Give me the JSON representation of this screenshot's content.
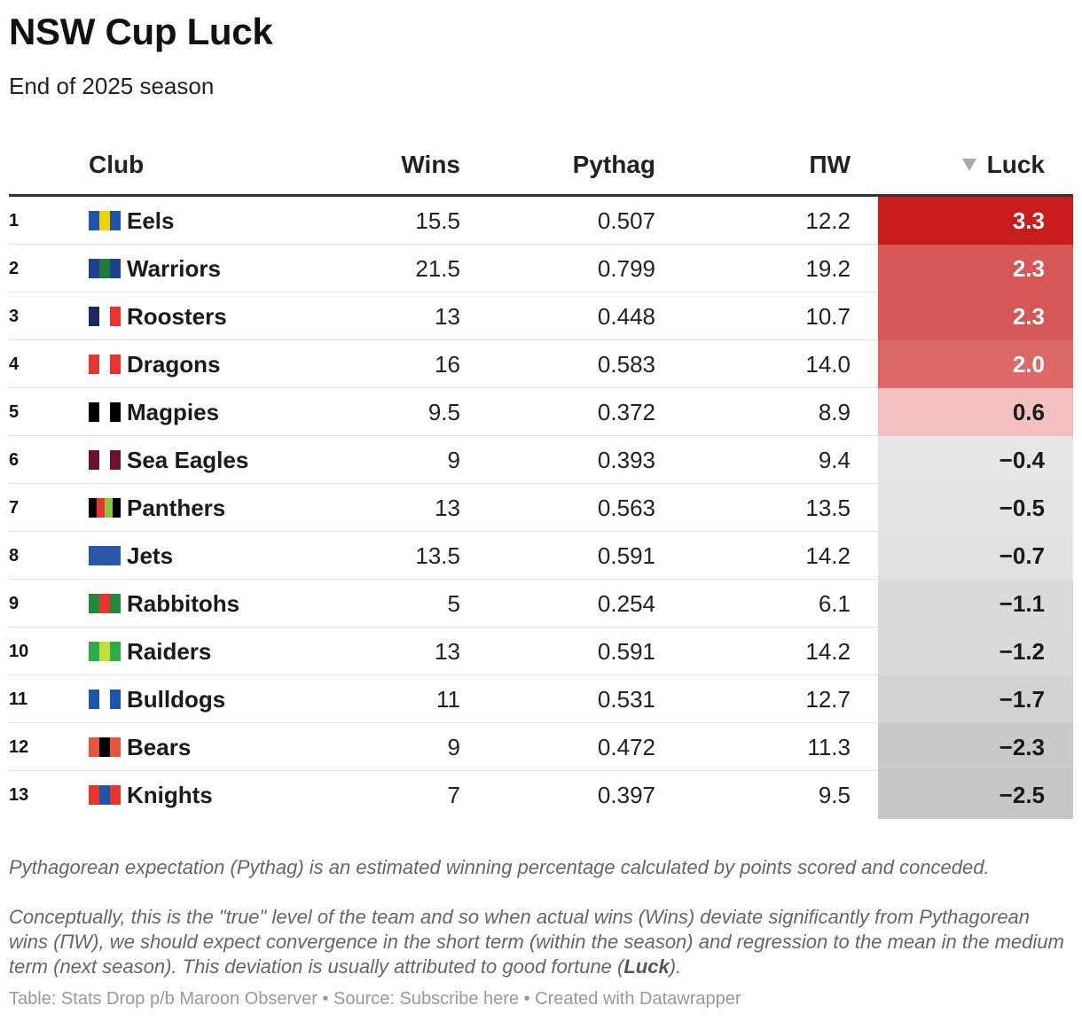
{
  "header": {
    "title": "NSW Cup Luck",
    "subtitle": "End of 2025 season"
  },
  "columns": {
    "club": "Club",
    "wins": "Wins",
    "pythag": "Pythag",
    "pw": "ΠW",
    "luck": "Luck",
    "sort_icon": "sort-descending-triangle-icon"
  },
  "chart_data": {
    "type": "table",
    "title": "NSW Cup Luck",
    "subtitle": "End of 2025 season",
    "columns": [
      "Club",
      "Wins",
      "Pythag",
      "ΠW",
      "Luck"
    ],
    "sorted_by": "Luck",
    "sort_order": "descending",
    "rows": [
      {
        "rank": "1",
        "club": "Eels",
        "wins": "15.5",
        "pythag": "0.507",
        "pw": "12.2",
        "luck": "3.3",
        "luck_value": 3.3,
        "flag": [
          "#1d55a8",
          "#f5d000",
          "#1d55a8"
        ]
      },
      {
        "rank": "2",
        "club": "Warriors",
        "wins": "21.5",
        "pythag": "0.799",
        "pw": "19.2",
        "luck": "2.3",
        "luck_value": 2.3,
        "flag": [
          "#1f3f8f",
          "#1f7a3a",
          "#1f3f8f"
        ]
      },
      {
        "rank": "3",
        "club": "Roosters",
        "wins": "13",
        "pythag": "0.448",
        "pw": "10.7",
        "luck": "2.3",
        "luck_value": 2.3,
        "flag": [
          "#1a2a5e",
          "#ffffff",
          "#e8332e"
        ]
      },
      {
        "rank": "4",
        "club": "Dragons",
        "wins": "16",
        "pythag": "0.583",
        "pw": "14.0",
        "luck": "2.0",
        "luck_value": 2.0,
        "flag": [
          "#e8332e",
          "#ffffff",
          "#e8332e"
        ]
      },
      {
        "rank": "5",
        "club": "Magpies",
        "wins": "9.5",
        "pythag": "0.372",
        "pw": "8.9",
        "luck": "0.6",
        "luck_value": 0.6,
        "flag": [
          "#000000",
          "#ffffff",
          "#000000"
        ]
      },
      {
        "rank": "6",
        "club": "Sea Eagles",
        "wins": "9",
        "pythag": "0.393",
        "pw": "9.4",
        "luck": "−0.4",
        "luck_value": -0.4,
        "flag": [
          "#6b1232",
          "#ffffff",
          "#6b1232"
        ]
      },
      {
        "rank": "7",
        "club": "Panthers",
        "wins": "13",
        "pythag": "0.563",
        "pw": "13.5",
        "luck": "−0.5",
        "luck_value": -0.5,
        "flag": [
          "#000000",
          "#e8332e",
          "#8cc63e",
          "#000000"
        ]
      },
      {
        "rank": "8",
        "club": "Jets",
        "wins": "13.5",
        "pythag": "0.591",
        "pw": "14.2",
        "luck": "−0.7",
        "luck_value": -0.7,
        "flag": [
          "#2a56a8",
          "#2a56a8",
          "#2a56a8"
        ]
      },
      {
        "rank": "9",
        "club": "Rabbitohs",
        "wins": "5",
        "pythag": "0.254",
        "pw": "6.1",
        "luck": "−1.1",
        "luck_value": -1.1,
        "flag": [
          "#1e8a3a",
          "#e8332e",
          "#1e8a3a"
        ]
      },
      {
        "rank": "10",
        "club": "Raiders",
        "wins": "13",
        "pythag": "0.591",
        "pw": "14.2",
        "luck": "−1.2",
        "luck_value": -1.2,
        "flag": [
          "#2eab4a",
          "#c4dc3c",
          "#2eab4a"
        ]
      },
      {
        "rank": "11",
        "club": "Bulldogs",
        "wins": "11",
        "pythag": "0.531",
        "pw": "12.7",
        "luck": "−1.7",
        "luck_value": -1.7,
        "flag": [
          "#1d55a8",
          "#ffffff",
          "#1d55a8"
        ]
      },
      {
        "rank": "12",
        "club": "Bears",
        "wins": "9",
        "pythag": "0.472",
        "pw": "11.3",
        "luck": "−2.3",
        "luck_value": -2.3,
        "flag": [
          "#e8553e",
          "#000000",
          "#e8553e"
        ]
      },
      {
        "rank": "13",
        "club": "Knights",
        "wins": "7",
        "pythag": "0.397",
        "pw": "9.5",
        "luck": "−2.5",
        "luck_value": -2.5,
        "flag": [
          "#e8332e",
          "#1d55a8",
          "#e8332e"
        ]
      }
    ],
    "luck_color_scale": {
      "positive_max": "#c91d1d",
      "positive_min": "#fdeeeb",
      "negative_min": "#ececec",
      "negative_max": "#c6c6c6"
    }
  },
  "notes": {
    "note1": "Pythagorean expectation (Pythag) is an estimated winning percentage calculated by points scored and conceded.",
    "note2_before": "Conceptually, this is the \"true\" level of the team and so when actual wins (Wins) deviate significantly from Pythagorean wins (ΠW), we should expect convergence in the short term (within the season) and regression to the mean in the medium term (next season). This deviation is usually attributed to good fortune (",
    "note2_bold": "Luck",
    "note2_after": ")."
  },
  "footer": "Table: Stats Drop p/b Maroon Observer • Source: Subscribe here • Created with Datawrapper"
}
